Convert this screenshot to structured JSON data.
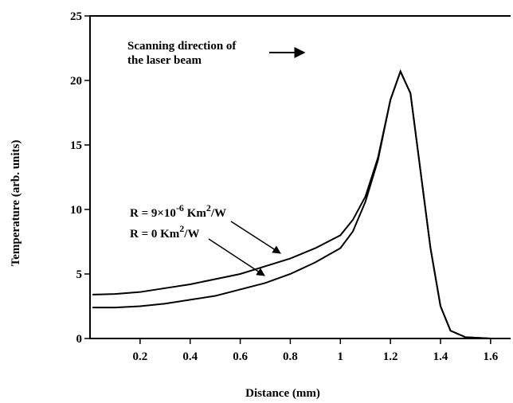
{
  "chart_data": {
    "type": "line",
    "xlabel": "Distance (mm)",
    "ylabel": "Temperature (arb. units)",
    "xlim": [
      0,
      1.68
    ],
    "ylim": [
      0,
      25
    ],
    "xticks": [
      0.2,
      0.4,
      0.6,
      0.8,
      1.0,
      1.2,
      1.4,
      1.6
    ],
    "yticks": [
      0,
      5,
      10,
      15,
      20,
      25
    ],
    "x": [
      0.01,
      0.1,
      0.2,
      0.3,
      0.4,
      0.5,
      0.6,
      0.7,
      0.8,
      0.9,
      1.0,
      1.05,
      1.1,
      1.15,
      1.2,
      1.24,
      1.28,
      1.32,
      1.36,
      1.4,
      1.44,
      1.5,
      1.6,
      1.68
    ],
    "series": [
      {
        "name": [
          "R = 9×10",
          "-6",
          " Km",
          "2",
          "/W"
        ],
        "color": "#000000",
        "values": [
          3.4,
          3.45,
          3.6,
          3.9,
          4.2,
          4.6,
          5.0,
          5.6,
          6.2,
          7.0,
          8.0,
          9.2,
          11.0,
          14.0,
          18.5,
          20.7,
          19.0,
          13.0,
          7.0,
          2.5,
          0.6,
          0.1,
          0,
          0
        ]
      },
      {
        "name": [
          "R = 0 Km",
          "2",
          "/W"
        ],
        "color": "#000000",
        "values": [
          2.4,
          2.4,
          2.5,
          2.7,
          3.0,
          3.3,
          3.8,
          4.3,
          5.0,
          5.9,
          7.0,
          8.3,
          10.6,
          13.8,
          18.5,
          20.7,
          19.0,
          13.0,
          7.0,
          2.5,
          0.6,
          0.1,
          0,
          0
        ]
      }
    ],
    "annotation": [
      "Scanning direction of",
      "the laser beam"
    ]
  }
}
